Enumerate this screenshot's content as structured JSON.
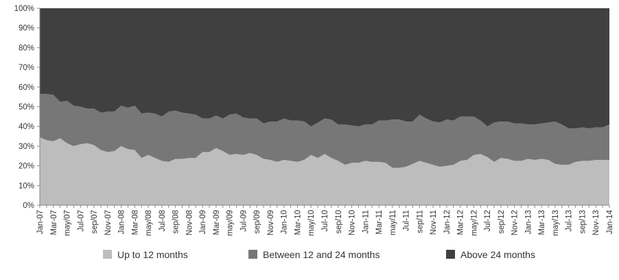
{
  "chart_data": {
    "type": "area",
    "stacked": true,
    "percent_stacked": true,
    "x": [
      "Jan-07",
      "Feb-07",
      "Mar-07",
      "Apr-07",
      "may/07",
      "Jun-07",
      "Jul-07",
      "Aug-07",
      "sep/07",
      "Oct-07",
      "Nov-07",
      "Dec-07",
      "Jan-08",
      "Feb-08",
      "Mar-08",
      "Apr-08",
      "may/08",
      "Jun-08",
      "Jul-08",
      "Aug-08",
      "sep/08",
      "Oct-08",
      "Nov-08",
      "Dec-08",
      "Jan-09",
      "Feb-09",
      "Mar-09",
      "Apr-09",
      "may/09",
      "Jun-09",
      "Jul-09",
      "Aug-09",
      "sep/09",
      "Oct-09",
      "Nov-09",
      "Dec-09",
      "Jan-10",
      "Feb-10",
      "Mar-10",
      "Apr-10",
      "may/10",
      "Jun-10",
      "Jul-10",
      "Aug-10",
      "sep/10",
      "Oct-10",
      "Nov-10",
      "Dec-10",
      "Jan-11",
      "Feb-11",
      "Mar-11",
      "Apr-11",
      "may/11",
      "Jun-11",
      "Jul-11",
      "Aug-11",
      "sep/11",
      "Oct-11",
      "Nov-11",
      "Dec-11",
      "Jan-12",
      "Feb-12",
      "Mar-12",
      "Apr-12",
      "may/12",
      "Jun-12",
      "Jul-12",
      "Aug-12",
      "sep/12",
      "Oct-12",
      "Nov-12",
      "Dec-12",
      "Jan-13",
      "Feb-13",
      "Mar-13",
      "Apr-13",
      "may/13",
      "Jun-13",
      "Jul-13",
      "Aug-13",
      "sep/13",
      "Oct-13",
      "Nov-13",
      "Dec-13",
      "Jan-14"
    ],
    "x_tick_labels": [
      "Jan-07",
      "Mar-07",
      "may/07",
      "Jul-07",
      "sep/07",
      "Nov-07",
      "Jan-08",
      "Mar-08",
      "may/08",
      "Jul-08",
      "sep/08",
      "Nov-08",
      "Jan-09",
      "Mar-09",
      "may/09",
      "Jul-09",
      "sep/09",
      "Nov-09",
      "Jan-10",
      "Mar-10",
      "may/10",
      "Jul-10",
      "sep/10",
      "Nov-10",
      "Jan-11",
      "Mar-11",
      "may/11",
      "Jul-11",
      "sep/11",
      "Nov-11",
      "Jan-12",
      "Mar-12",
      "may/12",
      "Jul-12",
      "sep/12",
      "Nov-12",
      "Jan-13",
      "Mar-13",
      "may/13",
      "Jul-13",
      "sep/13",
      "Nov-13",
      "Jan-14"
    ],
    "y_ticks": [
      "0%",
      "10%",
      "20%",
      "30%",
      "40%",
      "50%",
      "60%",
      "70%",
      "80%",
      "90%",
      "100%"
    ],
    "ylim": [
      0,
      100
    ],
    "grid": false,
    "legend_position": "bottom",
    "series": [
      {
        "name": "Up to 12 months",
        "color": "#bdbdbd",
        "values": [
          34.5,
          33,
          32.5,
          34,
          31.5,
          30,
          31,
          31.5,
          30.5,
          28,
          27,
          27.5,
          30,
          28.5,
          28,
          24,
          25.5,
          24,
          22.5,
          22,
          23.5,
          23.5,
          24,
          24,
          27,
          27,
          29,
          27.5,
          25.5,
          26,
          25.5,
          26.5,
          25.5,
          23.5,
          23,
          22,
          23,
          22.5,
          22,
          23,
          25.5,
          24,
          26,
          24,
          22.5,
          20.5,
          21.5,
          21.5,
          22.5,
          22,
          22,
          21.5,
          19,
          19,
          19.5,
          21,
          22.5,
          21.5,
          20.5,
          19.5,
          20,
          20.5,
          22.5,
          23,
          25.5,
          26,
          24.5,
          22,
          24,
          23.5,
          22.5,
          22.5,
          23.5,
          23,
          23.5,
          23,
          21,
          20.5,
          20.5,
          22,
          22.5,
          22.5,
          23,
          23,
          23
        ]
      },
      {
        "name": "Between 12 and 24 months",
        "color": "#777777",
        "values": [
          22,
          23.5,
          23.5,
          18.5,
          21.5,
          20.5,
          19,
          17.5,
          18.5,
          19,
          20.5,
          20,
          20.5,
          21,
          22.5,
          22.5,
          21.5,
          22.5,
          22.5,
          25.5,
          24.5,
          23.5,
          22.5,
          22,
          17,
          17,
          16.5,
          16.5,
          20.5,
          20.5,
          19,
          17.5,
          18.5,
          18,
          19.5,
          20.5,
          21,
          20.5,
          21,
          19.5,
          14.5,
          18,
          18,
          19.5,
          18.5,
          20.5,
          19,
          18.5,
          18.5,
          19,
          21,
          21.5,
          24.5,
          24.5,
          23,
          21.5,
          23.5,
          22.5,
          22,
          22.5,
          23.5,
          22.5,
          22.5,
          22,
          19.5,
          17,
          15.5,
          20,
          18.5,
          19,
          19,
          19,
          17.5,
          18,
          18,
          19,
          21.5,
          20.5,
          18.5,
          17,
          17,
          16.5,
          16.5,
          16.5,
          18
        ]
      },
      {
        "name": "Above 24 months",
        "color": "#404040",
        "values": [
          43.5,
          43.5,
          44,
          47.5,
          47,
          49.5,
          50,
          51,
          51,
          53,
          52.5,
          52.5,
          49.5,
          50.5,
          49.5,
          53.5,
          53,
          53.5,
          55,
          52.5,
          52,
          53,
          53.5,
          54,
          56,
          56,
          54.5,
          56,
          54,
          53.5,
          55.5,
          56,
          56,
          58.5,
          57.5,
          57.5,
          56,
          57,
          57,
          57.5,
          60,
          58,
          56,
          56.5,
          59,
          59,
          59.5,
          60,
          59,
          59,
          57,
          57,
          56.5,
          56.5,
          57.5,
          57.5,
          54,
          56,
          57.5,
          58,
          56.5,
          57,
          55,
          55,
          55,
          57,
          60,
          58,
          57.5,
          57.5,
          58.5,
          58.5,
          59,
          59,
          58.5,
          58,
          57.5,
          59,
          61,
          61,
          60.5,
          61,
          60.5,
          60.5,
          59
        ]
      }
    ]
  }
}
